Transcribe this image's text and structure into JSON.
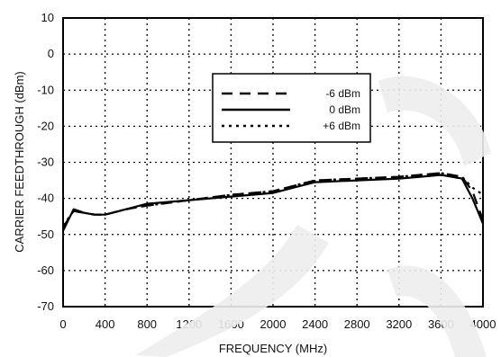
{
  "chart_data": {
    "type": "line",
    "xlabel": "FREQUENCY (MHz)",
    "ylabel": "CARRIER FEEDTHROUGH (dBm)",
    "xlim": [
      0,
      4000
    ],
    "ylim": [
      -70,
      10
    ],
    "xticks": [
      "0",
      "400",
      "800",
      "1200",
      "1600",
      "2000",
      "2400",
      "2800",
      "3200",
      "3600",
      "4000"
    ],
    "yticks": [
      "10",
      "0",
      "-10",
      "-20",
      "-30",
      "-40",
      "-50",
      "-60",
      "-70"
    ],
    "grid": true,
    "legend_position": "upper-center",
    "series": [
      {
        "name": "-6 dBm",
        "style": "dashed",
        "x": [
          0,
          100,
          200,
          300,
          400,
          600,
          800,
          1200,
          1600,
          2000,
          2400,
          2800,
          3200,
          3400,
          3600,
          3700,
          3800,
          3900,
          4000
        ],
        "y": [
          -48,
          -43.5,
          -44,
          -44.5,
          -44.5,
          -43,
          -42,
          -40.5,
          -39,
          -38,
          -35,
          -34.5,
          -34,
          -33.5,
          -33,
          -33.5,
          -34,
          -38,
          -46
        ]
      },
      {
        "name": "0 dBm",
        "style": "solid",
        "x": [
          0,
          100,
          200,
          300,
          400,
          600,
          800,
          1200,
          1600,
          2000,
          2400,
          2800,
          3200,
          3400,
          3600,
          3700,
          3800,
          3900,
          4000
        ],
        "y": [
          -49,
          -43,
          -44,
          -44.5,
          -44.5,
          -43,
          -41.5,
          -40.5,
          -39.5,
          -38.5,
          -35.5,
          -35,
          -34.5,
          -34,
          -33.5,
          -34,
          -34.5,
          -40,
          -47
        ]
      },
      {
        "name": "+6 dBm",
        "style": "dotted",
        "x": [
          0,
          100,
          200,
          300,
          400,
          600,
          800,
          1200,
          1600,
          2000,
          2400,
          2800,
          3200,
          3400,
          3600,
          3700,
          3800,
          3900,
          4000
        ],
        "y": [
          -47.5,
          -43.5,
          -44,
          -44.5,
          -44.5,
          -43,
          -42,
          -40.5,
          -39,
          -38,
          -35,
          -34.5,
          -34,
          -33.5,
          -33,
          -33.5,
          -34,
          -37,
          -39
        ]
      }
    ]
  }
}
